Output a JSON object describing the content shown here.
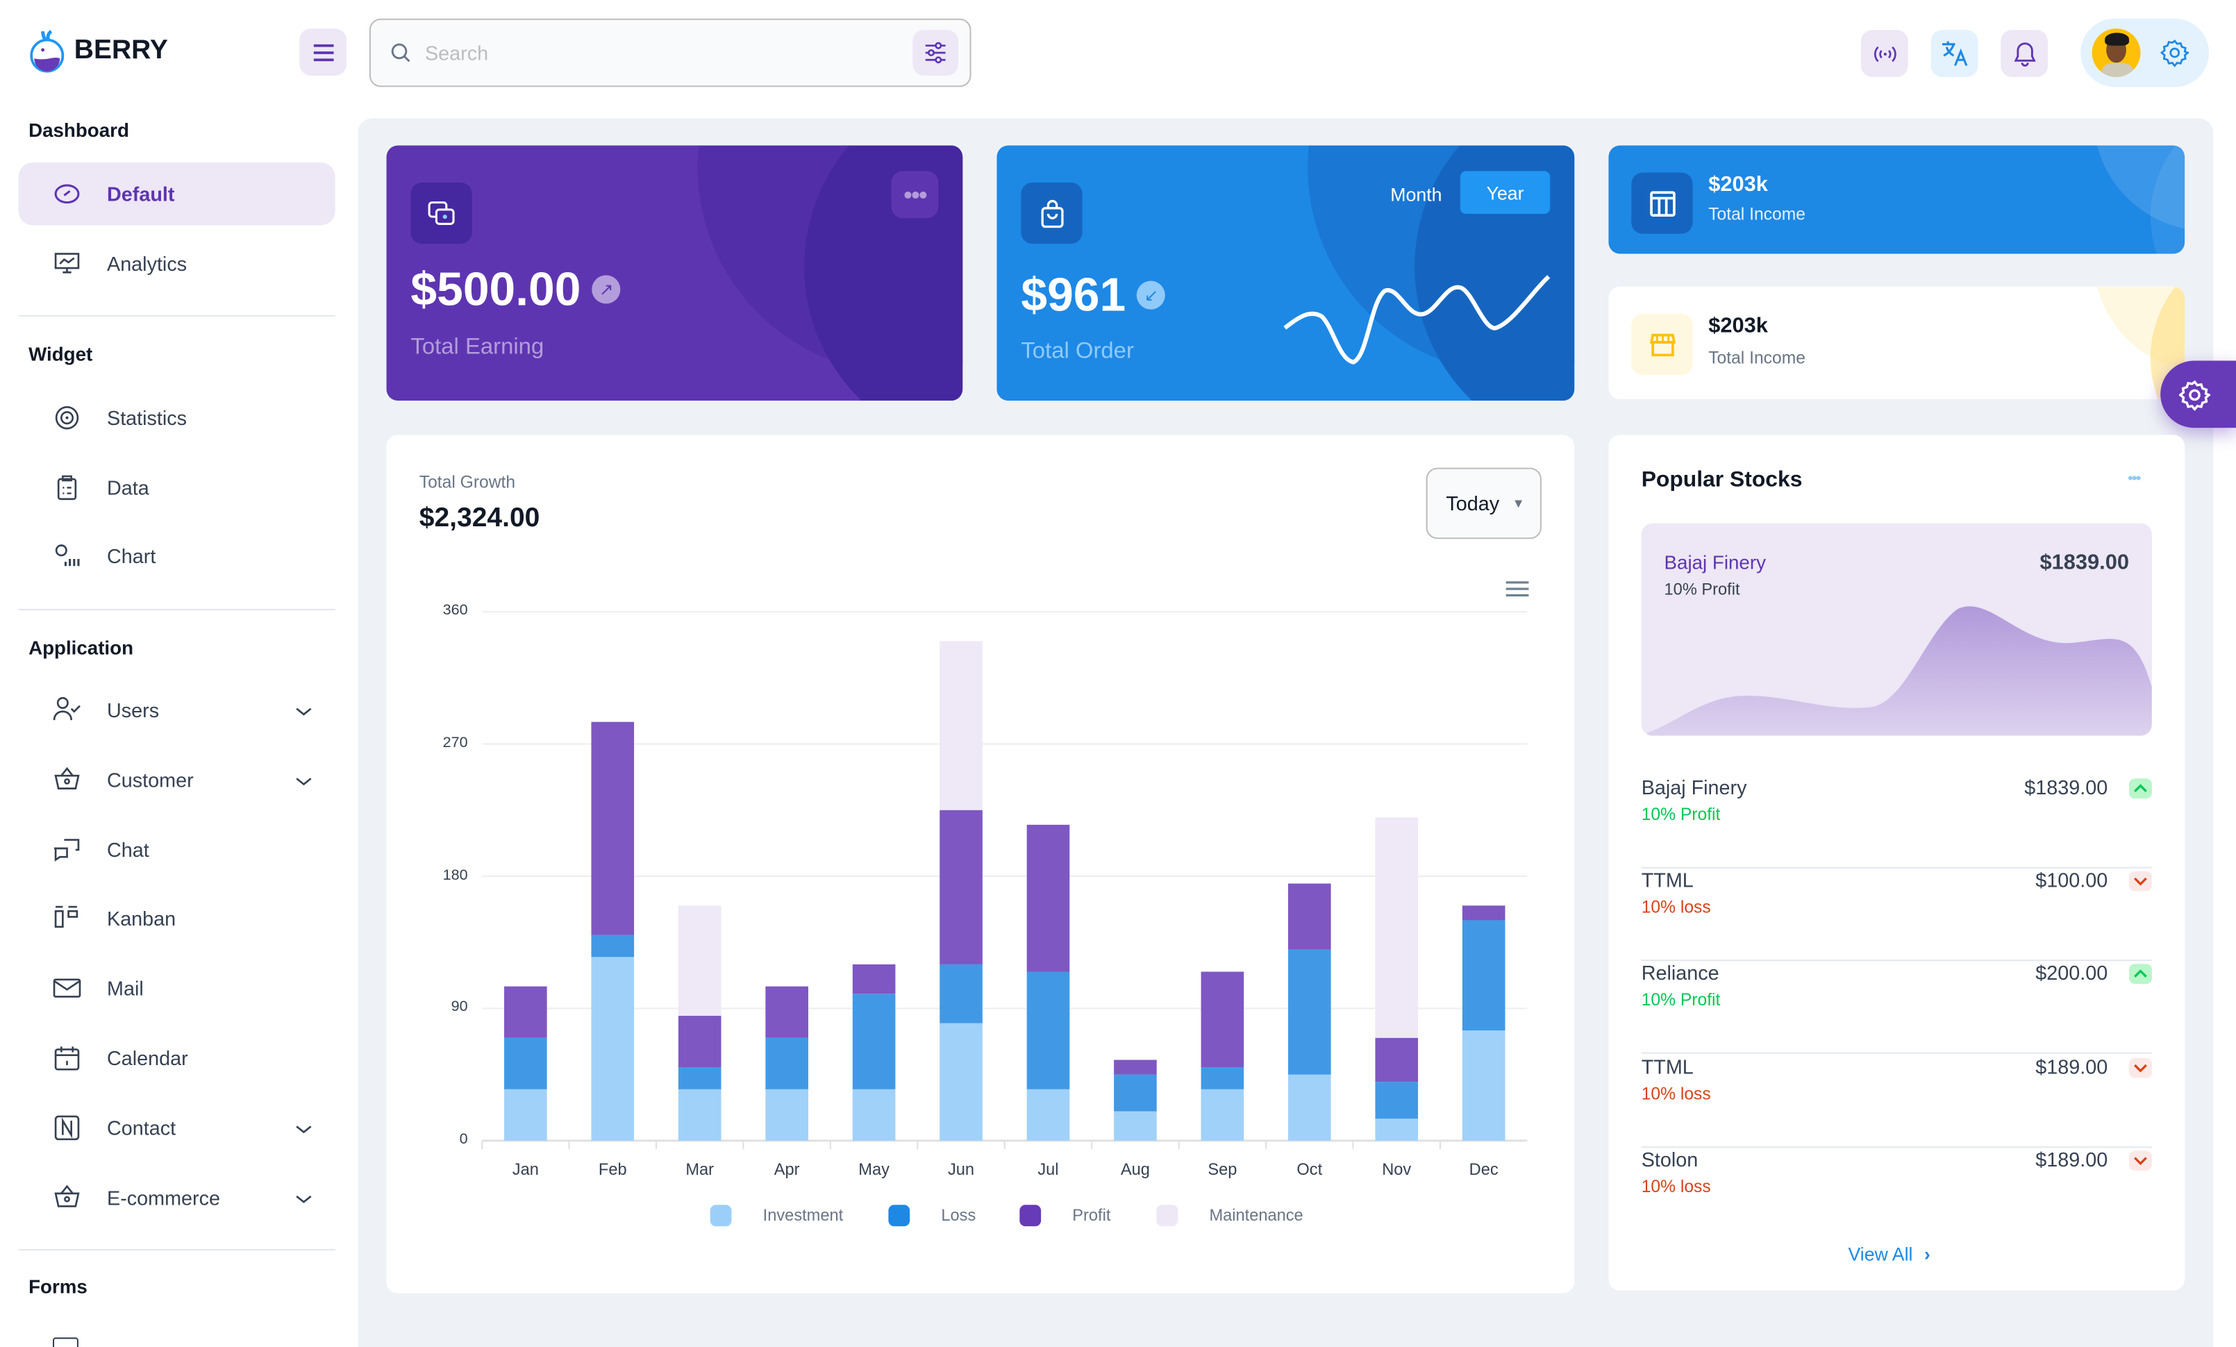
{
  "brand": {
    "name": "BERRY"
  },
  "search": {
    "placeholder": "Search",
    "value": ""
  },
  "header": {
    "icons": [
      "broadcast-icon",
      "translate-icon",
      "bell-icon",
      "avatar",
      "settings-icon"
    ]
  },
  "sidebar": {
    "sections": [
      {
        "title": "Dashboard",
        "items": [
          {
            "label": "Default",
            "icon": "dashboard-icon",
            "active": true
          },
          {
            "label": "Analytics",
            "icon": "device-analytics-icon"
          }
        ]
      },
      {
        "title": "Widget",
        "items": [
          {
            "label": "Statistics",
            "icon": "chart-arcs-icon"
          },
          {
            "label": "Data",
            "icon": "clipboard-list-icon"
          },
          {
            "label": "Chart",
            "icon": "chart-dots-icon"
          }
        ]
      },
      {
        "title": "Application",
        "items": [
          {
            "label": "Users",
            "icon": "user-check-icon",
            "expandable": true
          },
          {
            "label": "Customer",
            "icon": "basket-icon",
            "expandable": true
          },
          {
            "label": "Chat",
            "icon": "messages-icon"
          },
          {
            "label": "Kanban",
            "icon": "layout-kanban-icon"
          },
          {
            "label": "Mail",
            "icon": "mail-icon"
          },
          {
            "label": "Calendar",
            "icon": "calendar-icon"
          },
          {
            "label": "Contact",
            "icon": "nfc-icon",
            "expandable": true
          },
          {
            "label": "E-commerce",
            "icon": "basket-icon",
            "expandable": true
          }
        ]
      },
      {
        "title": "Forms",
        "items": []
      }
    ]
  },
  "cards": {
    "earning": {
      "value": "$500.00",
      "label": "Total Earning"
    },
    "order": {
      "value": "$961",
      "label": "Total Order",
      "toggle": [
        "Month",
        "Year"
      ],
      "selected": "Year"
    },
    "income_dark": {
      "value": "$203k",
      "label": "Total Income"
    },
    "income_light": {
      "value": "$203k",
      "label": "Total Income"
    }
  },
  "growth": {
    "label": "Total Growth",
    "value": "$2,324.00",
    "period": "Today"
  },
  "chart_data": {
    "type": "bar",
    "stacked": true,
    "categories": [
      "Jan",
      "Feb",
      "Mar",
      "Apr",
      "May",
      "Jun",
      "Jul",
      "Aug",
      "Sep",
      "Oct",
      "Nov",
      "Dec"
    ],
    "series": [
      {
        "name": "Investment",
        "color": "#90caf9",
        "values": [
          35,
          125,
          35,
          35,
          35,
          80,
          35,
          20,
          35,
          45,
          15,
          75
        ]
      },
      {
        "name": "Loss",
        "color": "#1e88e5",
        "values": [
          35,
          15,
          15,
          35,
          65,
          40,
          80,
          25,
          15,
          85,
          25,
          75
        ]
      },
      {
        "name": "Profit",
        "color": "#673ab7",
        "values": [
          35,
          145,
          35,
          35,
          20,
          105,
          100,
          10,
          65,
          45,
          30,
          10
        ]
      },
      {
        "name": "Maintenance",
        "color": "#ede7f6",
        "values": [
          0,
          0,
          75,
          0,
          0,
          115,
          0,
          0,
          0,
          0,
          150,
          0
        ]
      }
    ],
    "yticks": [
      "0",
      "90",
      "180",
      "270",
      "360"
    ],
    "ylim": [
      0,
      360
    ],
    "grid": true,
    "legend": "bottom"
  },
  "stocks": {
    "title": "Popular Stocks",
    "featured": {
      "name": "Bajaj Finery",
      "sub": "10% Profit",
      "price": "$1839.00"
    },
    "rows": [
      {
        "name": "Bajaj Finery",
        "sub": "10% Profit",
        "price": "$1839.00",
        "trend": "up"
      },
      {
        "name": "TTML",
        "sub": "10% loss",
        "price": "$100.00",
        "trend": "down"
      },
      {
        "name": "Reliance",
        "sub": "10% Profit",
        "price": "$200.00",
        "trend": "up"
      },
      {
        "name": "TTML",
        "sub": "10% loss",
        "price": "$189.00",
        "trend": "down"
      },
      {
        "name": "Stolon",
        "sub": "10% loss",
        "price": "$189.00",
        "trend": "down"
      }
    ],
    "view_all": "View All"
  },
  "colors": {
    "primary": "#673ab7",
    "secondary": "#1e88e5",
    "bg": "#eef2f6",
    "success": "#00c853",
    "error": "#d84315"
  }
}
